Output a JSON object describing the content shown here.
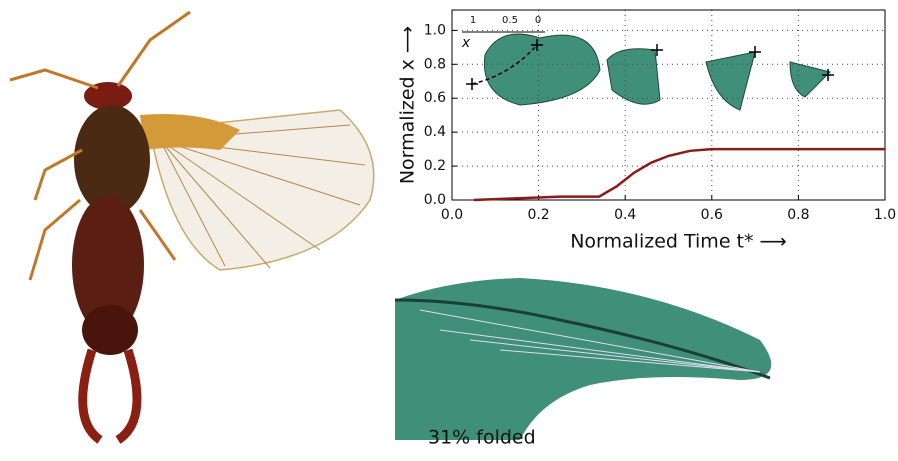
{
  "chart_data": {
    "type": "line",
    "xlabel": "Normalized Time t* ⟶",
    "ylabel": "Normalized x ⟶",
    "x": [
      0.05,
      0.1,
      0.2,
      0.25,
      0.3,
      0.34,
      0.38,
      0.42,
      0.46,
      0.5,
      0.55,
      0.6,
      0.7,
      0.8,
      0.9,
      1.0
    ],
    "series": [
      {
        "color": "#8b1a1a",
        "values": [
          0.0,
          0.005,
          0.015,
          0.02,
          0.02,
          0.02,
          0.08,
          0.16,
          0.22,
          0.26,
          0.29,
          0.3,
          0.3,
          0.3,
          0.3,
          0.3
        ]
      }
    ],
    "xlim": [
      0,
      1
    ],
    "ylim": [
      0,
      1.12
    ],
    "xticks": [
      {
        "value": 0,
        "label": "0.0"
      },
      {
        "value": 0.2,
        "label": "0.2"
      },
      {
        "value": 0.4,
        "label": "0.4"
      },
      {
        "value": 0.6,
        "label": "0.6"
      },
      {
        "value": 0.8,
        "label": "0.8"
      },
      {
        "value": 1,
        "label": "1.0"
      }
    ],
    "yticks": [
      {
        "value": 0,
        "label": "0.0"
      },
      {
        "value": 0.2,
        "label": "0.2"
      },
      {
        "value": 0.4,
        "label": "0.4"
      },
      {
        "value": 0.6,
        "label": "0.6"
      },
      {
        "value": 0.8,
        "label": "0.8"
      },
      {
        "value": 1,
        "label": "1.0"
      }
    ],
    "grid": true,
    "inset_labels": [
      "1",
      "0.5",
      "0",
      "x"
    ]
  },
  "render": {
    "caption": "31% folded"
  }
}
